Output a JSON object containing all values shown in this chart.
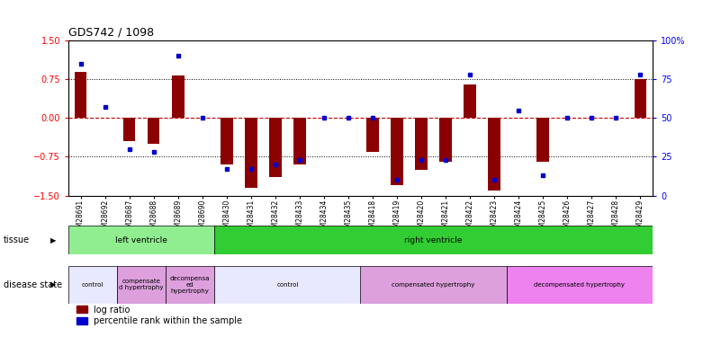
{
  "title": "GDS742 / 1098",
  "samples": [
    "GSM28691",
    "GSM28692",
    "GSM28687",
    "GSM28688",
    "GSM28689",
    "GSM28690",
    "GSM28430",
    "GSM28431",
    "GSM28432",
    "GSM28433",
    "GSM28434",
    "GSM28435",
    "GSM28418",
    "GSM28419",
    "GSM28420",
    "GSM28421",
    "GSM28422",
    "GSM28423",
    "GSM28424",
    "GSM28425",
    "GSM28426",
    "GSM28427",
    "GSM28428",
    "GSM28429"
  ],
  "log_ratio": [
    0.9,
    0.0,
    -0.45,
    -0.5,
    0.82,
    0.0,
    -0.9,
    -1.35,
    -1.15,
    -0.9,
    0.0,
    0.0,
    -0.65,
    -1.3,
    -1.0,
    -0.85,
    0.65,
    -1.4,
    0.0,
    -0.85,
    0.0,
    0.0,
    0.0,
    0.75
  ],
  "percentile": [
    85,
    57,
    30,
    28,
    90,
    50,
    17,
    17,
    20,
    23,
    50,
    50,
    50,
    10,
    23,
    23,
    78,
    10,
    55,
    13,
    50,
    50,
    50,
    78
  ],
  "tissue_groups": [
    {
      "label": "left ventricle",
      "start": 0,
      "end": 5,
      "color": "#90EE90"
    },
    {
      "label": "right ventricle",
      "start": 6,
      "end": 23,
      "color": "#32CD32"
    }
  ],
  "disease_groups": [
    {
      "label": "control",
      "start": 0,
      "end": 1,
      "color": "#E8E8FF"
    },
    {
      "label": "compensate\nd hypertrophy",
      "start": 2,
      "end": 3,
      "color": "#DDA0DD"
    },
    {
      "label": "decompensa\ned\nhypertrophy",
      "start": 4,
      "end": 5,
      "color": "#DDA0DD"
    },
    {
      "label": "control",
      "start": 6,
      "end": 11,
      "color": "#E8E8FF"
    },
    {
      "label": "compensated hypertrophy",
      "start": 12,
      "end": 17,
      "color": "#DDA0DD"
    },
    {
      "label": "decompensated hypertrophy",
      "start": 18,
      "end": 23,
      "color": "#EE82EE"
    }
  ],
  "ylim": [
    -1.5,
    1.5
  ],
  "y2lim": [
    0,
    100
  ],
  "yticks": [
    -1.5,
    -0.75,
    0,
    0.75,
    1.5
  ],
  "y2ticks": [
    0,
    25,
    50,
    75,
    100
  ],
  "hlines": [
    0.75,
    -0.75
  ],
  "bar_color": "#8B0000",
  "dot_color": "#0000CD",
  "zero_line_color": "#CC0000",
  "background_color": "#ffffff"
}
